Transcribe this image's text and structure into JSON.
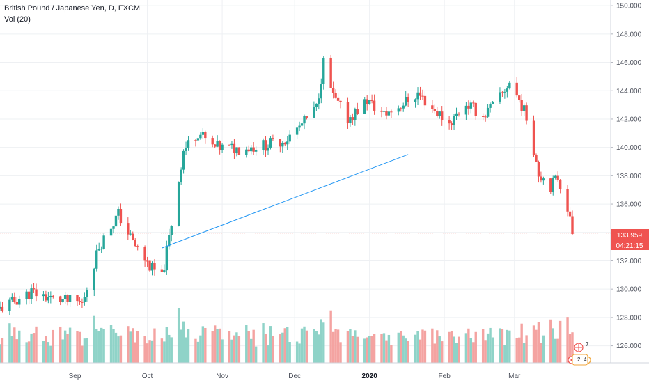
{
  "header": {
    "symbol_title": "British Pound / Japanese Yen, D, FXCM",
    "volume_label": "Vol (20)"
  },
  "price_tag": {
    "value": "133.959",
    "countdown": "04:21:15"
  },
  "markers": {
    "top": "7",
    "left": "2",
    "right": "4"
  },
  "colors": {
    "up": "#26a69a",
    "down": "#ef5350",
    "vol_up": "#8fd3c8",
    "vol_down": "#f4a3a1",
    "trendline": "#2196f3",
    "grid": "#eef0f3"
  },
  "chart_data": {
    "type": "candlestick",
    "symbol": "GBPJPY",
    "timeframe": "D",
    "y_axis": {
      "ticks": [
        "150.000",
        "148.000",
        "146.000",
        "144.000",
        "142.000",
        "140.000",
        "138.000",
        "136.000",
        "134.000",
        "132.000",
        "130.000",
        "128.000",
        "126.000"
      ],
      "ylim": [
        124.8,
        150.4
      ]
    },
    "x_axis": {
      "labels": [
        "Sep",
        "Oct",
        "Nov",
        "Dec",
        "2020",
        "Feb",
        "Mar"
      ]
    },
    "last_price": 133.959,
    "trendline": {
      "from": {
        "date": "2019-10-07",
        "price": 132.9
      },
      "to": {
        "date": "2020-01-17",
        "price": 139.5
      }
    },
    "volume": {
      "indicator": "Vol (20)",
      "max_bar_price_level": 131.0
    },
    "close_path": [
      [
        "2019-08-01",
        128.6
      ],
      [
        "2019-08-14",
        129.8
      ],
      [
        "2019-08-23",
        129.3
      ],
      [
        "2019-09-04",
        129.0
      ],
      [
        "2019-09-11",
        133.0
      ],
      [
        "2019-09-19",
        135.3
      ],
      [
        "2019-09-25",
        133.3
      ],
      [
        "2019-10-02",
        131.6
      ],
      [
        "2019-10-07",
        130.8
      ],
      [
        "2019-10-10",
        133.6
      ],
      [
        "2019-10-16",
        139.8
      ],
      [
        "2019-10-22",
        141.1
      ],
      [
        "2019-10-28",
        140.0
      ],
      [
        "2019-11-08",
        139.9
      ],
      [
        "2019-11-20",
        140.2
      ],
      [
        "2019-11-28",
        140.6
      ],
      [
        "2019-12-05",
        141.8
      ],
      [
        "2019-12-10",
        142.8
      ],
      [
        "2019-12-13",
        146.0
      ],
      [
        "2019-12-17",
        143.5
      ],
      [
        "2019-12-23",
        142.0
      ],
      [
        "2019-12-31",
        143.3
      ],
      [
        "2020-01-07",
        142.3
      ],
      [
        "2020-01-14",
        143.0
      ],
      [
        "2020-01-21",
        143.8
      ],
      [
        "2020-01-28",
        142.6
      ],
      [
        "2020-02-03",
        141.7
      ],
      [
        "2020-02-10",
        143.1
      ],
      [
        "2020-02-17",
        142.2
      ],
      [
        "2020-02-24",
        143.5
      ],
      [
        "2020-02-28",
        144.6
      ],
      [
        "2020-03-04",
        143.0
      ],
      [
        "2020-03-07",
        141.6
      ],
      [
        "2020-03-11",
        138.2
      ],
      [
        "2020-03-16",
        137.3
      ],
      [
        "2020-03-19",
        137.9
      ],
      [
        "2020-03-23",
        135.8
      ],
      [
        "2020-03-25",
        133.959
      ]
    ]
  }
}
